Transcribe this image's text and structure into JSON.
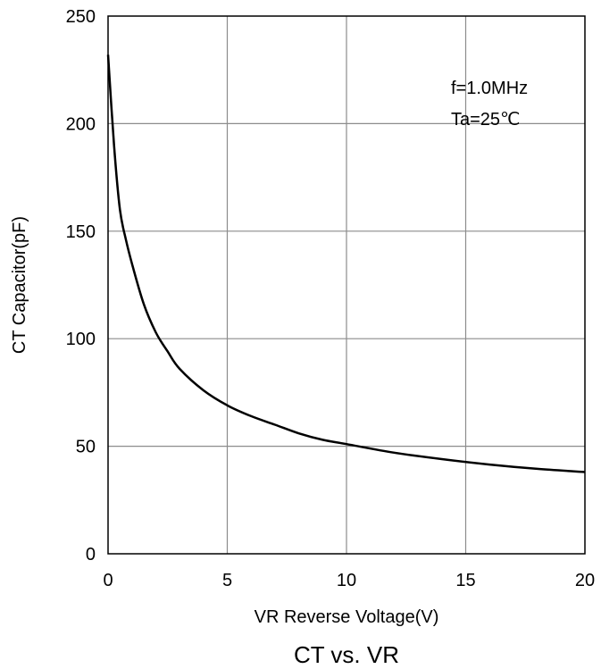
{
  "chart_data": {
    "type": "line",
    "title": "CT vs. VR",
    "xlabel": "VR Reverse Voltage(V)",
    "ylabel": "CT Capacitor(pF)",
    "xlim": [
      0,
      20
    ],
    "ylim": [
      0,
      250
    ],
    "x_ticks": [
      0,
      5,
      10,
      15,
      20
    ],
    "y_ticks": [
      0,
      50,
      100,
      150,
      200,
      250
    ],
    "grid": true,
    "annotations": [
      "f=1.0MHz",
      "Ta=25℃"
    ],
    "series": [
      {
        "x": [
          0,
          0.25,
          0.5,
          0.75,
          1.0,
          1.5,
          2.0,
          2.5,
          3.0,
          4.0,
          5.0,
          6.0,
          7.0,
          8.0,
          9.0,
          10.0,
          12.0,
          14.0,
          16.0,
          18.0,
          20.0
        ],
        "y": [
          232,
          190,
          160,
          146,
          135,
          116,
          103,
          94,
          86,
          76,
          69,
          64,
          60,
          56,
          53,
          51,
          47,
          44,
          41.5,
          39.5,
          38
        ],
        "color": "#000000"
      }
    ]
  }
}
